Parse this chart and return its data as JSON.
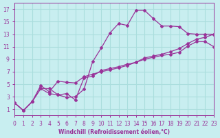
{
  "background_color": "#c8eef0",
  "grid_color": "#aadddd",
  "line_color": "#993399",
  "marker_color": "#993399",
  "xlabel": "Windchill (Refroidissement éolien,°C)",
  "xlabel_color": "#993399",
  "tick_color": "#993399",
  "xlim": [
    0,
    23
  ],
  "ylim": [
    0,
    18
  ],
  "xticks": [
    0,
    1,
    2,
    3,
    4,
    5,
    6,
    7,
    8,
    9,
    10,
    11,
    12,
    13,
    14,
    15,
    16,
    17,
    18,
    19,
    20,
    21,
    22,
    23
  ],
  "yticks": [
    1,
    3,
    5,
    7,
    9,
    11,
    13,
    15,
    17
  ],
  "series1_x": [
    0,
    1,
    2,
    3,
    4,
    5,
    6,
    7,
    8,
    9,
    10,
    11,
    12,
    13,
    14,
    15,
    16,
    17,
    18,
    19,
    20,
    21,
    22,
    23
  ],
  "series1_y": [
    2.0,
    0.8,
    2.2,
    4.3,
    3.5,
    3.3,
    2.9,
    3.0,
    4.2,
    8.6,
    10.8,
    13.2,
    14.7,
    14.4,
    16.8,
    16.8,
    15.5,
    14.3,
    14.3,
    14.2,
    13.1,
    13.0,
    13.0,
    13.0
  ],
  "series2_x": [
    0,
    1,
    2,
    3,
    4,
    5,
    6,
    7,
    8,
    9,
    10,
    11,
    12,
    13,
    14,
    15,
    16,
    17,
    18,
    19,
    20,
    21,
    22,
    23
  ],
  "series2_y": [
    2.0,
    0.8,
    2.2,
    4.3,
    4.3,
    3.3,
    3.5,
    2.5,
    6.0,
    6.3,
    7.2,
    7.5,
    7.8,
    8.2,
    8.5,
    9.0,
    9.3,
    9.6,
    9.8,
    10.1,
    11.1,
    11.8,
    11.8,
    11.0
  ],
  "series3_x": [
    0,
    1,
    2,
    3,
    4,
    5,
    6,
    7,
    8,
    9,
    10,
    11,
    12,
    13,
    14,
    15,
    16,
    17,
    18,
    19,
    20,
    21,
    22,
    23
  ],
  "series3_y": [
    2.0,
    0.8,
    2.2,
    4.8,
    3.8,
    5.5,
    5.3,
    5.2,
    6.2,
    6.6,
    7.0,
    7.3,
    7.6,
    8.0,
    8.5,
    9.2,
    9.5,
    9.8,
    10.2,
    10.7,
    11.5,
    12.2,
    12.5,
    13.0
  ]
}
